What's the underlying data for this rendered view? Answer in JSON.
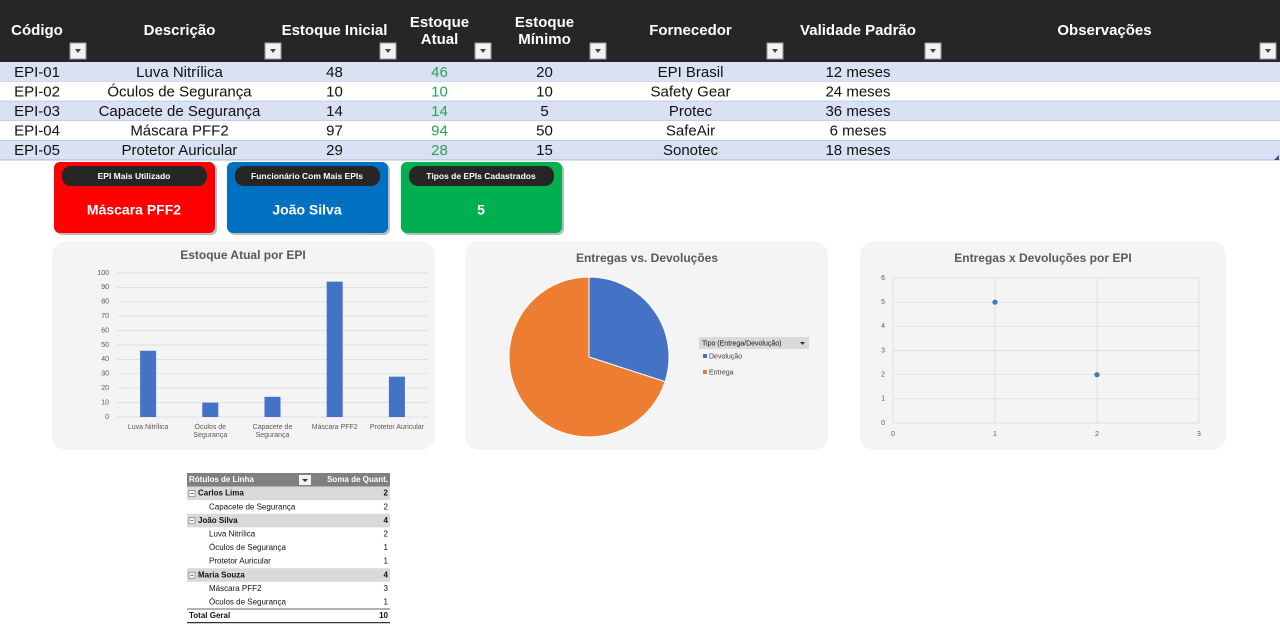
{
  "table": {
    "headers": [
      "Código",
      "Descrição",
      "Estoque Inicial",
      "Estoque Atual",
      "Estoque Mínimo",
      "Fornecedor",
      "Validade Padrão",
      "Observações"
    ],
    "rows": [
      [
        "EPI-01",
        "Luva Nitrílica",
        48,
        46,
        20,
        "EPI Brasil",
        "12 meses"
      ],
      [
        "EPI-02",
        "Óculos de Segurança",
        10,
        10,
        10,
        "Safety Gear",
        "24 meses"
      ],
      [
        "EPI-03",
        "Capacete de Segurança",
        14,
        14,
        5,
        "Protec",
        "36 meses"
      ],
      [
        "EPI-04",
        "Máscara PFF2",
        97,
        94,
        50,
        "SafeAir",
        "6 meses"
      ],
      [
        "EPI-05",
        "Protetor Auricular",
        29,
        28,
        15,
        "Sonotec",
        "18 meses"
      ]
    ]
  },
  "cards": [
    {
      "label": "EPI Mais Utilizado",
      "value": "Máscara PFF2",
      "color": "#ff0000"
    },
    {
      "label": "Funcionário Com Mais EPIs",
      "value": "João Silva",
      "color": "#0070c0"
    },
    {
      "label": "Tipos de EPIs Cadastrados",
      "value": 5,
      "color": "#00b050"
    }
  ],
  "charts": [
    {
      "type": "bar",
      "title": "Estoque Atual por EPI",
      "categories": [
        "Luva Nitrílica",
        "Óculos de Segurança",
        "Capacete de Segurança",
        "Máscara PFF2",
        "Protetor Auricular"
      ],
      "values": [
        46,
        10,
        14,
        94,
        28
      ],
      "color": "#4472c4",
      "ylim": [
        0,
        100
      ],
      "yticks": [
        0,
        10,
        20,
        30,
        40,
        50,
        60,
        70,
        80,
        90,
        100
      ],
      "grid": true
    },
    {
      "type": "pie",
      "title": "Entregas vs. Devoluções",
      "legend_title": "Tipo (Entrega/Devolução)",
      "categories": [
        "Devolução",
        "Entrega"
      ],
      "values": [
        3,
        7
      ],
      "colors": [
        "#4472c4",
        "#ed7d31"
      ]
    },
    {
      "type": "scatter",
      "title": "Entregas x Devoluções por EPI",
      "x": [
        1,
        2
      ],
      "values": [
        5,
        2
      ],
      "color": "#4472c4",
      "xlim": [
        0,
        3
      ],
      "xticks": [
        0,
        1,
        2,
        3
      ],
      "ylim": [
        0,
        6
      ],
      "yticks": [
        0,
        1,
        2,
        3,
        4,
        5,
        6
      ],
      "grid": true
    }
  ],
  "pivot": {
    "headers": [
      "Rótulos de Linha",
      "Soma de Quant."
    ],
    "rows": [
      {
        "label": "Carlos Lima",
        "value": 2,
        "group": true
      },
      {
        "label": "Capacete de Segurança",
        "value": 2,
        "group": false
      },
      {
        "label": "João Silva",
        "value": 4,
        "group": true
      },
      {
        "label": "Luva Nitrílica",
        "value": 2,
        "group": false
      },
      {
        "label": "Óculos de Segurança",
        "value": 1,
        "group": false
      },
      {
        "label": "Protetor Auricular",
        "value": 1,
        "group": false
      },
      {
        "label": "Maria Souza",
        "value": 4,
        "group": true
      },
      {
        "label": "Máscara PFF2",
        "value": 3,
        "group": false
      },
      {
        "label": "Óculos de Segurança",
        "value": 1,
        "group": false
      }
    ],
    "total": {
      "label": "Total Geral",
      "value": 10
    }
  }
}
